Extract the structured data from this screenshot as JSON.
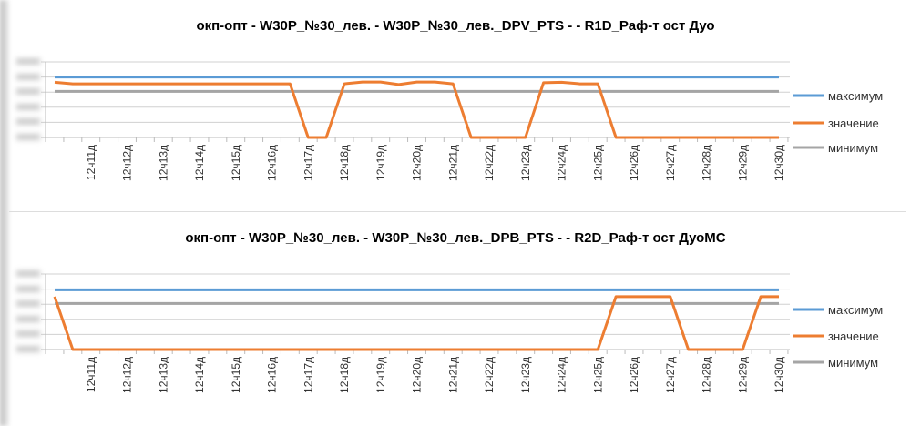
{
  "chart_data": [
    {
      "type": "line",
      "title": "окп-опт - W30P_№30_лев. - W30P_№30_лев._DPV_PTS -  - R1D_Раф-т ост Дуо",
      "categories": [
        "",
        "",
        "12ч11д",
        "",
        "12ч12д",
        "",
        "12ч13д",
        "",
        "12ч14д",
        "",
        "12ч15д",
        "",
        "12ч16д",
        "",
        "12ч17д",
        "",
        "12ч18д",
        "",
        "12ч19д",
        "",
        "12ч20д",
        "",
        "12ч21д",
        "",
        "12ч22д",
        "",
        "12ч23д",
        "",
        "12ч24д",
        "",
        "12ч25д",
        "",
        "12ч26д",
        "",
        "12ч27д",
        "",
        "12ч28д",
        "",
        "12ч29д",
        "",
        "12ч30д"
      ],
      "ylim": [
        0,
        5
      ],
      "grid": true,
      "legend_position": "right",
      "series": [
        {
          "name": "максимум",
          "color": "#5b9bd5",
          "values": [
            4,
            4,
            4,
            4,
            4,
            4,
            4,
            4,
            4,
            4,
            4,
            4,
            4,
            4,
            4,
            4,
            4,
            4,
            4,
            4,
            4,
            4,
            4,
            4,
            4,
            4,
            4,
            4,
            4,
            4,
            4,
            4,
            4,
            4,
            4,
            4,
            4,
            4,
            4,
            4,
            4
          ]
        },
        {
          "name": "значение",
          "color": "#ed7d31",
          "values": [
            3.65,
            3.55,
            3.55,
            3.55,
            3.55,
            3.55,
            3.55,
            3.55,
            3.55,
            3.55,
            3.55,
            3.55,
            3.55,
            3.55,
            0,
            0,
            3.55,
            3.67,
            3.67,
            3.5,
            3.67,
            3.67,
            3.55,
            0,
            0,
            0,
            0,
            3.62,
            3.65,
            3.55,
            3.55,
            0,
            0,
            0,
            0,
            0,
            0,
            0,
            0,
            0,
            0
          ]
        },
        {
          "name": "минимум",
          "color": "#a5a5a5",
          "values": [
            3.05,
            3.05,
            3.05,
            3.05,
            3.05,
            3.05,
            3.05,
            3.05,
            3.05,
            3.05,
            3.05,
            3.05,
            3.05,
            3.05,
            3.05,
            3.05,
            3.05,
            3.05,
            3.05,
            3.05,
            3.05,
            3.05,
            3.05,
            3.05,
            3.05,
            3.05,
            3.05,
            3.05,
            3.05,
            3.05,
            3.05,
            3.05,
            3.05,
            3.05,
            3.05,
            3.05,
            3.05,
            3.05,
            3.05,
            3.05,
            3.05
          ]
        }
      ]
    },
    {
      "type": "line",
      "title": "окп-опт - W30P_№30_лев. - W30P_№30_лев._DPB_PTS -  - R2D_Раф-т ост ДуоMC",
      "categories": [
        "",
        "",
        "12ч11д",
        "",
        "12ч12д",
        "",
        "12ч13д",
        "",
        "12ч14д",
        "",
        "12ч15д",
        "",
        "12ч16д",
        "",
        "12ч17д",
        "",
        "12ч18д",
        "",
        "12ч19д",
        "",
        "12ч20д",
        "",
        "12ч21д",
        "",
        "12ч22д",
        "",
        "12ч23д",
        "",
        "12ч24д",
        "",
        "12ч25д",
        "",
        "12ч26д",
        "",
        "12ч27д",
        "",
        "12ч28д",
        "",
        "12ч29д",
        "",
        "12ч30д"
      ],
      "ylim": [
        0,
        5
      ],
      "grid": true,
      "legend_position": "right",
      "series": [
        {
          "name": "максимум",
          "color": "#5b9bd5",
          "values": [
            3.95,
            3.95,
            3.95,
            3.95,
            3.95,
            3.95,
            3.95,
            3.95,
            3.95,
            3.95,
            3.95,
            3.95,
            3.95,
            3.95,
            3.95,
            3.95,
            3.95,
            3.95,
            3.95,
            3.95,
            3.95,
            3.95,
            3.95,
            3.95,
            3.95,
            3.95,
            3.95,
            3.95,
            3.95,
            3.95,
            3.95,
            3.95,
            3.95,
            3.95,
            3.95,
            3.95,
            3.95,
            3.95,
            3.95,
            3.95,
            3.95
          ]
        },
        {
          "name": "значение",
          "color": "#ed7d31",
          "values": [
            3.5,
            0,
            0,
            0,
            0,
            0,
            0,
            0,
            0,
            0,
            0,
            0,
            0,
            0,
            0,
            0,
            0,
            0,
            0,
            0,
            0,
            0,
            0,
            0,
            0,
            0,
            0,
            0,
            0,
            0,
            0,
            3.5,
            3.5,
            3.5,
            3.5,
            0,
            0,
            0,
            0,
            3.5,
            3.5
          ]
        },
        {
          "name": "минимум",
          "color": "#a5a5a5",
          "values": [
            3.05,
            3.05,
            3.05,
            3.05,
            3.05,
            3.05,
            3.05,
            3.05,
            3.05,
            3.05,
            3.05,
            3.05,
            3.05,
            3.05,
            3.05,
            3.05,
            3.05,
            3.05,
            3.05,
            3.05,
            3.05,
            3.05,
            3.05,
            3.05,
            3.05,
            3.05,
            3.05,
            3.05,
            3.05,
            3.05,
            3.05,
            3.05,
            3.05,
            3.05,
            3.05,
            3.05,
            3.05,
            3.05,
            3.05,
            3.05,
            3.05
          ]
        }
      ]
    }
  ]
}
